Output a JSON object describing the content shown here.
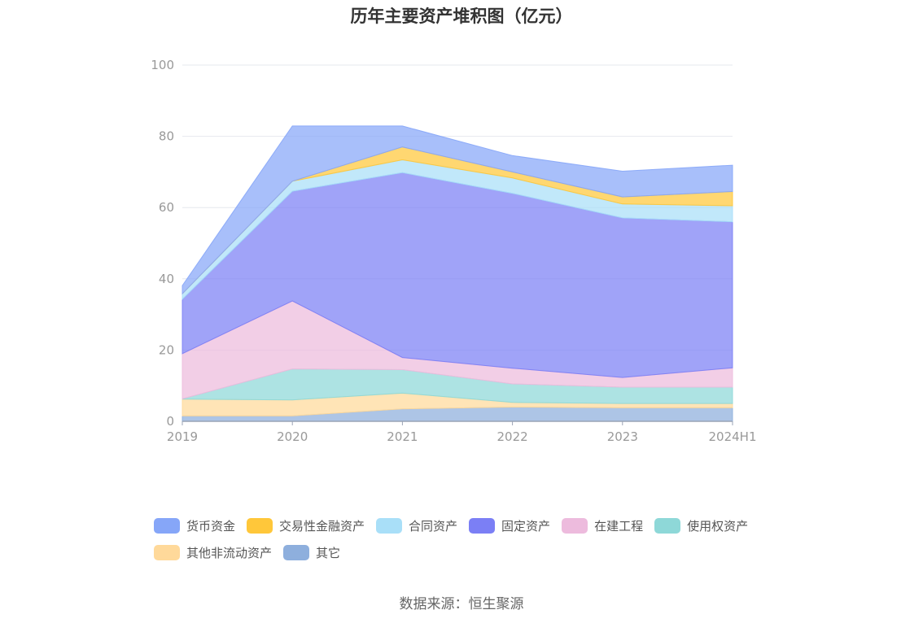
{
  "chart_data": {
    "type": "area",
    "stacked": true,
    "title": "历年主要资产堆积图（亿元）",
    "categories": [
      "2019",
      "2020",
      "2021",
      "2022",
      "2023",
      "2024H1"
    ],
    "ylim": [
      0,
      100
    ],
    "yticks": [
      0,
      20,
      40,
      60,
      80,
      100
    ],
    "grid": true,
    "legend_position": "bottom",
    "series": [
      {
        "name": "其它",
        "color": "#8EAFDD",
        "values": [
          1.5,
          1.5,
          3.5,
          4.0,
          3.8,
          3.8
        ]
      },
      {
        "name": "其他非流动资产",
        "color": "#FFD99A",
        "values": [
          4.7,
          4.5,
          4.4,
          1.3,
          1.2,
          1.2
        ]
      },
      {
        "name": "使用权资产",
        "color": "#8ED8D8",
        "values": [
          0.1,
          8.7,
          6.6,
          5.2,
          4.6,
          4.6
        ]
      },
      {
        "name": "在建工程",
        "color": "#EDBBDD",
        "values": [
          12.7,
          19.1,
          3.4,
          4.4,
          2.7,
          5.4
        ]
      },
      {
        "name": "固定资产",
        "color": "#7B7FF5",
        "values": [
          15.3,
          30.8,
          51.9,
          49.1,
          44.8,
          41.0
        ]
      },
      {
        "name": "合同资产",
        "color": "#A9DFF8",
        "values": [
          1.5,
          2.8,
          3.6,
          4.3,
          3.9,
          4.5
        ]
      },
      {
        "name": "交易性金融资产",
        "color": "#FFC73A",
        "values": [
          0.0,
          0.0,
          3.6,
          1.7,
          2.0,
          4.0
        ]
      },
      {
        "name": "货币资金",
        "color": "#86A6F8",
        "values": [
          2.3,
          15.5,
          5.9,
          4.6,
          7.2,
          7.4
        ]
      }
    ],
    "legend_rows": [
      [
        "货币资金",
        "交易性金融资产",
        "合同资产",
        "固定资产",
        "在建工程",
        "使用权资产"
      ],
      [
        "其他非流动资产",
        "其它"
      ]
    ]
  },
  "source": "数据来源：恒生聚源"
}
